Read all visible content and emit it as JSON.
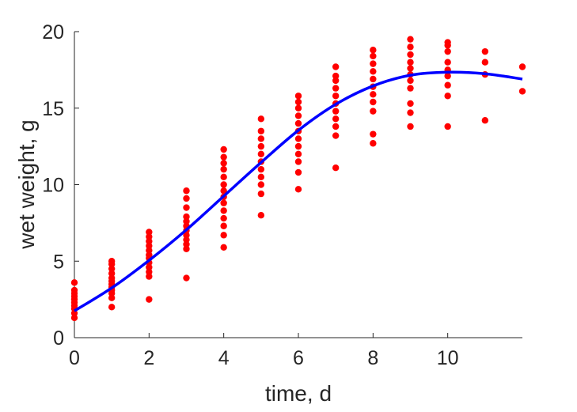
{
  "chart_data": {
    "type": "scatter",
    "title": "",
    "xlabel": "time, d",
    "ylabel": "wet weight, g",
    "xlim": [
      0,
      12
    ],
    "ylim": [
      0,
      20
    ],
    "xticks": [
      0,
      2,
      4,
      6,
      8,
      10
    ],
    "yticks": [
      0,
      5,
      10,
      15,
      20
    ],
    "grid": false,
    "legend": "none",
    "colors": {
      "points": "#ff0000",
      "fit": "#0000ff",
      "axes": "#262626"
    },
    "series": [
      {
        "type": "scatter",
        "points": [
          [
            0,
            1.3
          ],
          [
            0,
            1.6
          ],
          [
            0,
            1.9
          ],
          [
            0,
            2.1
          ],
          [
            0,
            2.3
          ],
          [
            0,
            2.5
          ],
          [
            0,
            2.7
          ],
          [
            0,
            2.9
          ],
          [
            0,
            3.1
          ],
          [
            0,
            3.6
          ],
          [
            1,
            2.0
          ],
          [
            1,
            2.6
          ],
          [
            1,
            2.9
          ],
          [
            1,
            3.1
          ],
          [
            1,
            3.3
          ],
          [
            1,
            3.5
          ],
          [
            1,
            3.7
          ],
          [
            1,
            3.9
          ],
          [
            1,
            4.2
          ],
          [
            1,
            4.5
          ],
          [
            1,
            4.8
          ],
          [
            1,
            5.0
          ],
          [
            2,
            2.5
          ],
          [
            2,
            4.0
          ],
          [
            2,
            4.3
          ],
          [
            2,
            4.6
          ],
          [
            2,
            4.9
          ],
          [
            2,
            5.2
          ],
          [
            2,
            5.4
          ],
          [
            2,
            5.7
          ],
          [
            2,
            6.0
          ],
          [
            2,
            6.3
          ],
          [
            2,
            6.6
          ],
          [
            2,
            6.9
          ],
          [
            3,
            3.9
          ],
          [
            3,
            5.8
          ],
          [
            3,
            6.1
          ],
          [
            3,
            6.4
          ],
          [
            3,
            6.7
          ],
          [
            3,
            7.0
          ],
          [
            3,
            7.3
          ],
          [
            3,
            7.6
          ],
          [
            3,
            7.9
          ],
          [
            3,
            8.5
          ],
          [
            3,
            9.1
          ],
          [
            3,
            9.6
          ],
          [
            4,
            5.9
          ],
          [
            4,
            6.7
          ],
          [
            4,
            7.3
          ],
          [
            4,
            7.8
          ],
          [
            4,
            8.3
          ],
          [
            4,
            8.8
          ],
          [
            4,
            9.2
          ],
          [
            4,
            9.6
          ],
          [
            4,
            10.0
          ],
          [
            4,
            10.5
          ],
          [
            4,
            11.0
          ],
          [
            4,
            11.4
          ],
          [
            4,
            11.8
          ],
          [
            4,
            12.3
          ],
          [
            5,
            8.0
          ],
          [
            5,
            9.4
          ],
          [
            5,
            10.0
          ],
          [
            5,
            10.5
          ],
          [
            5,
            11.0
          ],
          [
            5,
            11.5
          ],
          [
            5,
            12.0
          ],
          [
            5,
            12.5
          ],
          [
            5,
            13.0
          ],
          [
            5,
            13.5
          ],
          [
            5,
            14.3
          ],
          [
            6,
            9.7
          ],
          [
            6,
            10.8
          ],
          [
            6,
            11.5
          ],
          [
            6,
            12.0
          ],
          [
            6,
            12.5
          ],
          [
            6,
            13.0
          ],
          [
            6,
            13.5
          ],
          [
            6,
            14.0
          ],
          [
            6,
            14.5
          ],
          [
            6,
            15.0
          ],
          [
            6,
            15.4
          ],
          [
            6,
            15.8
          ],
          [
            7,
            11.1
          ],
          [
            7,
            13.2
          ],
          [
            7,
            13.8
          ],
          [
            7,
            14.3
          ],
          [
            7,
            14.8
          ],
          [
            7,
            15.3
          ],
          [
            7,
            15.8
          ],
          [
            7,
            16.3
          ],
          [
            7,
            16.8
          ],
          [
            7,
            17.1
          ],
          [
            7,
            17.7
          ],
          [
            8,
            12.7
          ],
          [
            8,
            13.3
          ],
          [
            8,
            14.8
          ],
          [
            8,
            15.4
          ],
          [
            8,
            15.9
          ],
          [
            8,
            16.4
          ],
          [
            8,
            16.9
          ],
          [
            8,
            17.4
          ],
          [
            8,
            17.9
          ],
          [
            8,
            18.4
          ],
          [
            8,
            18.8
          ],
          [
            9,
            13.8
          ],
          [
            9,
            14.7
          ],
          [
            9,
            15.3
          ],
          [
            9,
            16.3
          ],
          [
            9,
            16.8
          ],
          [
            9,
            17.2
          ],
          [
            9,
            17.6
          ],
          [
            9,
            18.0
          ],
          [
            9,
            18.5
          ],
          [
            9,
            19.0
          ],
          [
            9,
            19.5
          ],
          [
            10,
            13.8
          ],
          [
            10,
            15.8
          ],
          [
            10,
            16.5
          ],
          [
            10,
            17.1
          ],
          [
            10,
            17.5
          ],
          [
            10,
            18.0
          ],
          [
            10,
            18.7
          ],
          [
            10,
            19.1
          ],
          [
            10,
            19.3
          ],
          [
            11,
            14.2
          ],
          [
            11,
            17.2
          ],
          [
            11,
            18.0
          ],
          [
            11,
            18.7
          ],
          [
            12,
            16.1
          ],
          [
            12,
            17.7
          ]
        ]
      },
      {
        "type": "line",
        "points": [
          [
            0,
            1.75
          ],
          [
            1,
            3.25
          ],
          [
            2,
            5.05
          ],
          [
            3,
            7.05
          ],
          [
            4,
            9.25
          ],
          [
            5,
            11.45
          ],
          [
            6,
            13.55
          ],
          [
            7,
            15.25
          ],
          [
            8,
            16.45
          ],
          [
            9,
            17.15
          ],
          [
            10,
            17.35
          ],
          [
            11,
            17.25
          ],
          [
            12,
            16.9
          ]
        ]
      }
    ]
  }
}
